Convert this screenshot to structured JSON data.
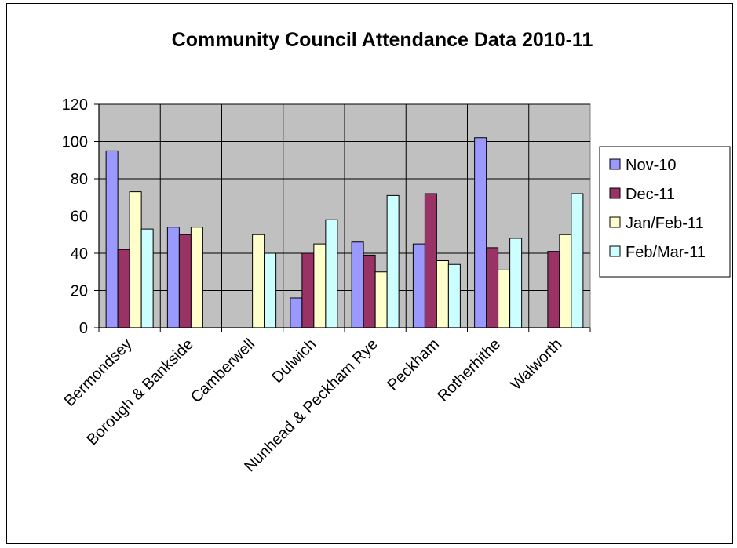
{
  "chart_data": {
    "type": "bar",
    "title": "Community Council Attendance Data 2010-11",
    "xlabel": "",
    "ylabel": "",
    "ylim": [
      0,
      120
    ],
    "yticks": [
      0,
      20,
      40,
      60,
      80,
      100,
      120
    ],
    "grid": true,
    "legend_position": "right",
    "plot_background": "#c0c0c0",
    "categories": [
      "Bermondsey",
      "Borough & Bankside",
      "Camberwell",
      "Dulwich",
      "Nunhead & Peckham Rye",
      "Peckham",
      "Rotherhithe",
      "Walworth"
    ],
    "series": [
      {
        "name": "Nov-10",
        "color": "#9999ff",
        "values": [
          95,
          54,
          null,
          16,
          46,
          45,
          102,
          null
        ]
      },
      {
        "name": "Dec-11",
        "color": "#993366",
        "values": [
          42,
          50,
          null,
          40,
          39,
          72,
          43,
          41
        ]
      },
      {
        "name": "Jan/Feb-11",
        "color": "#ffffcc",
        "values": [
          73,
          54,
          50,
          45,
          30,
          36,
          31,
          50
        ]
      },
      {
        "name": "Feb/Mar-11",
        "color": "#ccffff",
        "values": [
          53,
          null,
          40,
          58,
          71,
          34,
          48,
          72
        ]
      }
    ]
  }
}
